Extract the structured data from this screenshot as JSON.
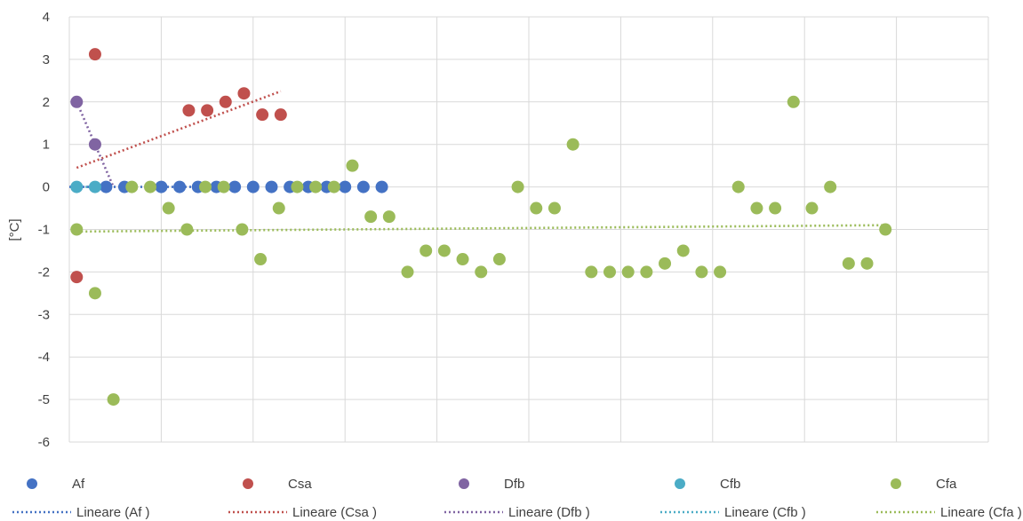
{
  "chart_data": {
    "type": "scatter",
    "title": "",
    "xlabel": "",
    "ylabel": "[°C]",
    "xlim": [
      0,
      50
    ],
    "ylim": [
      -6,
      4
    ],
    "x_gridlines": [
      0,
      5,
      10,
      15,
      20,
      25,
      30,
      35,
      40,
      45,
      50
    ],
    "yticks": [
      "4",
      "3",
      "2",
      "1",
      "0",
      "-1",
      "-2",
      "-3",
      "-4",
      "-5",
      "-6"
    ],
    "ytick_values": [
      4,
      3,
      2,
      1,
      0,
      -1,
      -2,
      -3,
      -4,
      -5,
      -6
    ],
    "grid": true,
    "legend_position": "bottom",
    "series": [
      {
        "name": "Af",
        "color": "#4472c4",
        "points": [
          [
            2,
            0
          ],
          [
            3,
            0
          ],
          [
            5,
            0
          ],
          [
            6,
            0
          ],
          [
            7,
            0
          ],
          [
            8,
            0
          ],
          [
            9,
            0
          ],
          [
            10,
            0
          ],
          [
            11,
            0
          ],
          [
            12,
            0
          ],
          [
            13,
            0
          ],
          [
            14,
            0
          ],
          [
            15,
            0
          ],
          [
            16,
            0
          ],
          [
            17,
            0
          ]
        ],
        "trendline": {
          "label": "Lineare (Af )",
          "from": [
            0,
            0
          ],
          "to": [
            8.5,
            0
          ]
        }
      },
      {
        "name": "Csa",
        "color": "#c0504d",
        "points": [
          [
            0.4,
            -2.12
          ],
          [
            1.4,
            3.12
          ],
          [
            6.5,
            1.8
          ],
          [
            7.5,
            1.8
          ],
          [
            8.5,
            2.0
          ],
          [
            9.5,
            2.2
          ],
          [
            10.5,
            1.7
          ],
          [
            11.5,
            1.7
          ]
        ],
        "trendline": {
          "label": "Lineare (Csa )",
          "from": [
            0.4,
            0.45
          ],
          "to": [
            11.5,
            2.25
          ]
        }
      },
      {
        "name": "Dfb",
        "color": "#8064a2",
        "points": [
          [
            0.4,
            2.0
          ],
          [
            1.4,
            1.0
          ]
        ],
        "trendline": {
          "label": "Lineare (Dfb )",
          "from": [
            0.4,
            2.0
          ],
          "to": [
            2.4,
            0.0
          ]
        }
      },
      {
        "name": "Cfb",
        "color": "#4bacc6",
        "points": [
          [
            0.4,
            0
          ],
          [
            1.4,
            0
          ]
        ],
        "trendline": {
          "label": "Lineare (Cfb )",
          "from": [
            0.4,
            0
          ],
          "to": [
            1.4,
            0
          ]
        }
      },
      {
        "name": "Cfa",
        "color": "#9bbb59",
        "points": [
          [
            0.4,
            -1.0
          ],
          [
            1.4,
            -2.5
          ],
          [
            2.4,
            -5.0
          ],
          [
            3.4,
            0.0
          ],
          [
            4.4,
            0.0
          ],
          [
            5.4,
            -0.5
          ],
          [
            6.4,
            -1.0
          ],
          [
            7.4,
            0.0
          ],
          [
            8.4,
            0.0
          ],
          [
            9.4,
            -1.0
          ],
          [
            10.4,
            -1.7
          ],
          [
            11.4,
            -0.5
          ],
          [
            12.4,
            0.0
          ],
          [
            13.4,
            0.0
          ],
          [
            14.4,
            0.0
          ],
          [
            15.4,
            0.5
          ],
          [
            16.4,
            -0.7
          ],
          [
            17.4,
            -0.7
          ],
          [
            18.4,
            -2.0
          ],
          [
            19.4,
            -1.5
          ],
          [
            20.4,
            -1.5
          ],
          [
            21.4,
            -1.7
          ],
          [
            22.4,
            -2.0
          ],
          [
            23.4,
            -1.7
          ],
          [
            24.4,
            0.0
          ],
          [
            25.4,
            -0.5
          ],
          [
            26.4,
            -0.5
          ],
          [
            27.4,
            1.0
          ],
          [
            28.4,
            -2.0
          ],
          [
            29.4,
            -2.0
          ],
          [
            30.4,
            -2.0
          ],
          [
            31.4,
            -2.0
          ],
          [
            32.4,
            -1.8
          ],
          [
            33.4,
            -1.5
          ],
          [
            34.4,
            -2.0
          ],
          [
            35.4,
            -2.0
          ],
          [
            36.4,
            0.0
          ],
          [
            37.4,
            -0.5
          ],
          [
            38.4,
            -0.5
          ],
          [
            39.4,
            2.0
          ],
          [
            40.4,
            -0.5
          ],
          [
            41.4,
            0.0
          ],
          [
            42.4,
            -1.8
          ],
          [
            43.4,
            -1.8
          ],
          [
            44.4,
            -1.0
          ]
        ],
        "trendline": {
          "label": "Lineare (Cfa )",
          "from": [
            0.4,
            -1.05
          ],
          "to": [
            44.4,
            -0.9
          ]
        }
      }
    ]
  }
}
